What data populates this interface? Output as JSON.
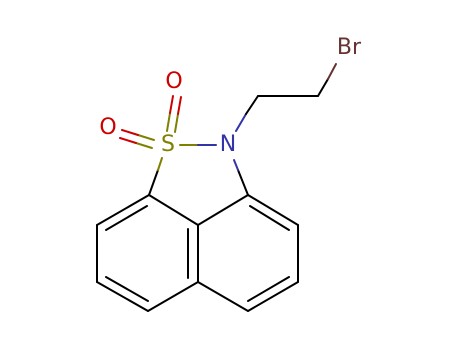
{
  "atoms": [
    {
      "label": "O"
    },
    {
      "label": "O"
    },
    {
      "label": "S"
    },
    {
      "label": "N"
    },
    {
      "label": "Br"
    }
  ]
}
